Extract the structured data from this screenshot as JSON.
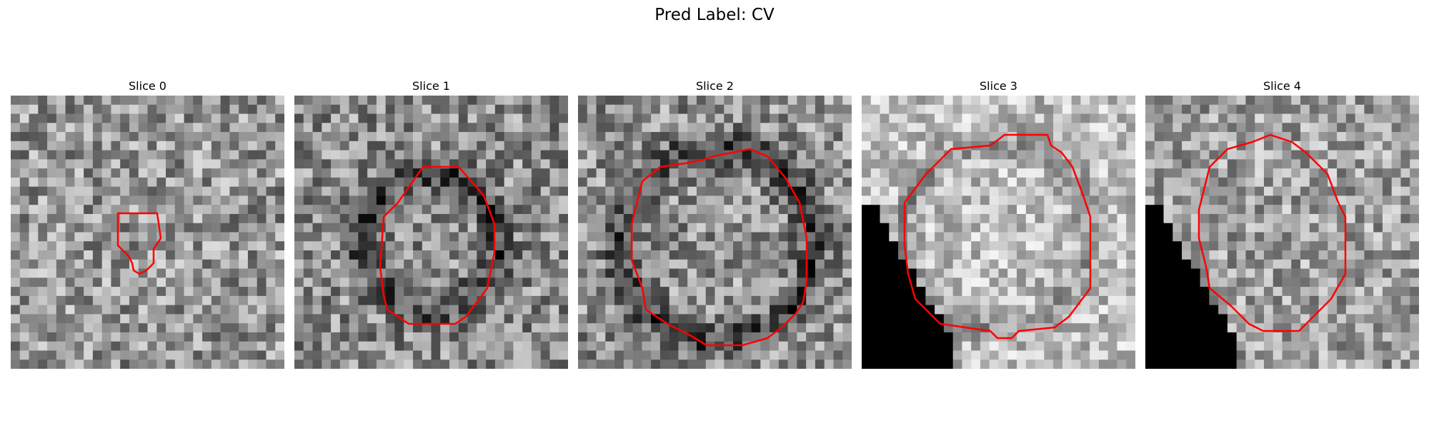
{
  "figure": {
    "title": "Pred Label: CV"
  },
  "slices": [
    {
      "title": "Slice 0"
    },
    {
      "title": "Slice 1"
    },
    {
      "title": "Slice 2"
    },
    {
      "title": "Slice 3"
    },
    {
      "title": "Slice 4"
    }
  ],
  "colors": {
    "contour": "#ff0000",
    "background": "#ffffff"
  }
}
